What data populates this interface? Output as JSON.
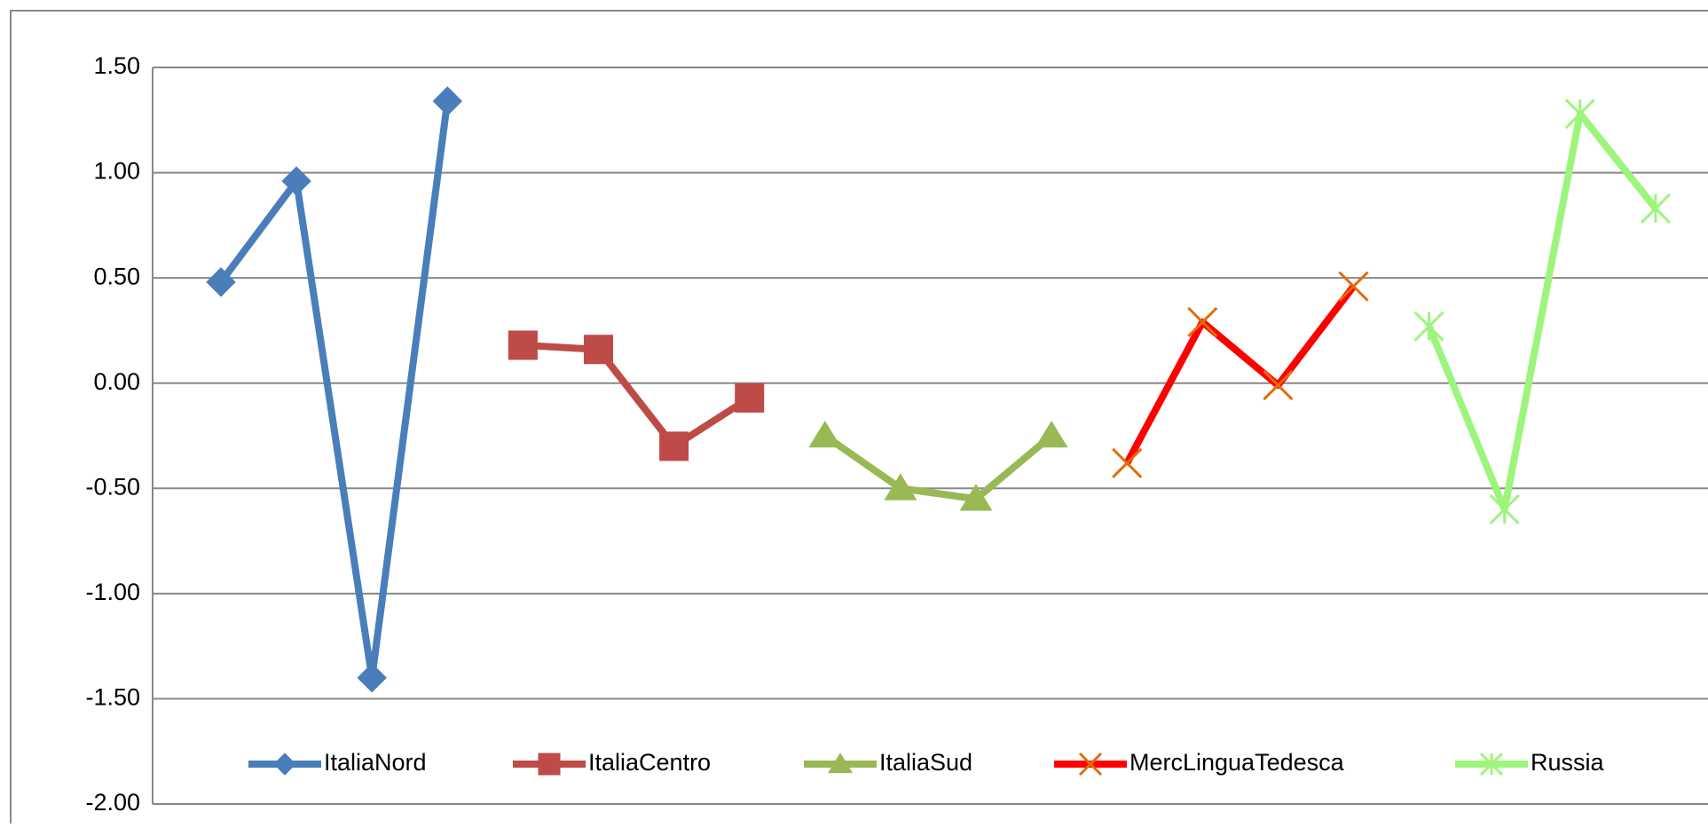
{
  "chart_data": {
    "type": "line",
    "categories": [
      null,
      null,
      null,
      null,
      null,
      null,
      null,
      null,
      null,
      null,
      null,
      null,
      null,
      null,
      null,
      null,
      null,
      null,
      null,
      null
    ],
    "series": [
      {
        "name": "ItaliaNord",
        "color": "#4a7ebb",
        "marker": "diamond",
        "values": [
          0.48,
          0.96,
          -1.4,
          1.34,
          null,
          null,
          null,
          null,
          null,
          null,
          null,
          null,
          null,
          null,
          null,
          null,
          null,
          null,
          null,
          null
        ]
      },
      {
        "name": "ItaliaCentro",
        "color": "#be4b48",
        "marker": "square",
        "values": [
          null,
          null,
          null,
          null,
          0.18,
          0.16,
          -0.3,
          -0.07,
          null,
          null,
          null,
          null,
          null,
          null,
          null,
          null,
          null,
          null,
          null,
          null
        ]
      },
      {
        "name": "ItaliaSud",
        "color": "#98b954",
        "marker": "triangle",
        "values": [
          null,
          null,
          null,
          null,
          null,
          null,
          null,
          null,
          -0.25,
          -0.5,
          -0.55,
          -0.25,
          null,
          null,
          null,
          null,
          null,
          null,
          null,
          null
        ]
      },
      {
        "name": "MercLinguaTedesca",
        "color": "#ff0000",
        "marker": "x",
        "values": [
          null,
          null,
          null,
          null,
          null,
          null,
          null,
          null,
          null,
          null,
          null,
          null,
          -0.38,
          0.29,
          -0.01,
          0.46,
          null,
          null,
          null,
          null
        ]
      },
      {
        "name": "Russia",
        "color": "#9cf57c",
        "marker": "star",
        "values": [
          null,
          null,
          null,
          null,
          null,
          null,
          null,
          null,
          null,
          null,
          null,
          null,
          null,
          null,
          null,
          null,
          0.27,
          -0.6,
          1.28,
          0.83
        ]
      }
    ],
    "ylim": [
      -2.0,
      1.5
    ],
    "yticks": [
      {
        "value": 1.5,
        "label": "1.50"
      },
      {
        "value": 1.0,
        "label": "1.00"
      },
      {
        "value": 0.5,
        "label": "0.50"
      },
      {
        "value": 0,
        "label": "0.00"
      },
      {
        "value": -0.5,
        "label": "-0.50"
      },
      {
        "value": -1.0,
        "label": "-1.00"
      },
      {
        "value": -1.5,
        "label": "-1.50"
      },
      {
        "value": -2.0,
        "label": "-2.00"
      }
    ],
    "grid": true,
    "legend": "bottom"
  }
}
